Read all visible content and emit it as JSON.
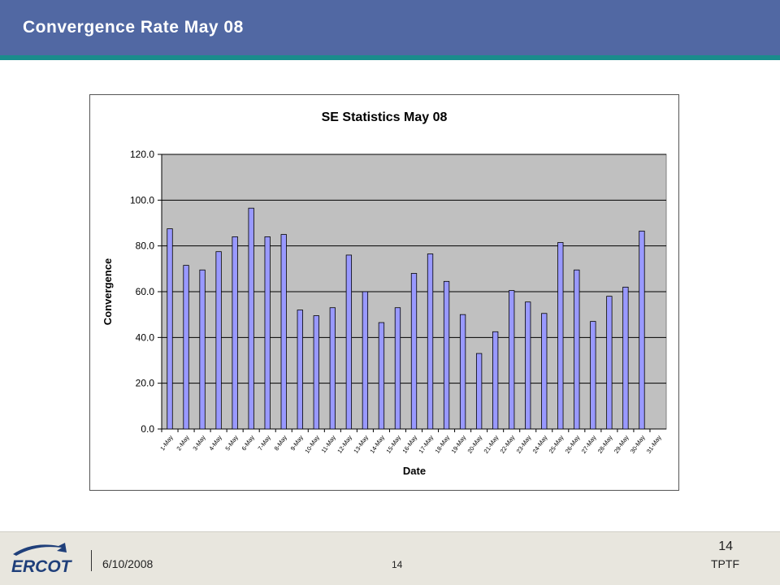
{
  "slide": {
    "title": "Convergence Rate May 08",
    "footer_date": "6/10/2008",
    "page_number": "14",
    "page_number_center": "14",
    "footer_org": "TPTF",
    "logo_text": "ERCOT"
  },
  "colors": {
    "header": "#5168a3",
    "accent_stripe": "#1a8c8c",
    "plot_bg": "#c0c0c0",
    "bar_fill": "#9999ff",
    "bar_stroke": "#000000",
    "logo_blue": "#1f3f7a"
  },
  "chart_data": {
    "type": "bar",
    "title": "SE Statistics May 08",
    "xlabel": "Date",
    "ylabel": "Convergence",
    "ylim": [
      0,
      120
    ],
    "yticks": [
      "0.0",
      "20.0",
      "40.0",
      "60.0",
      "80.0",
      "100.0",
      "120.0"
    ],
    "grid": true,
    "legend": "none",
    "categories": [
      "1-May",
      "2-May",
      "3-May",
      "4-May",
      "5-May",
      "6-May",
      "7-May",
      "8-May",
      "9-May",
      "10-May",
      "11-May",
      "12-May",
      "13-May",
      "14-May",
      "15-May",
      "16-May",
      "17-May",
      "18-May",
      "19-May",
      "20-May",
      "21-May",
      "22-May",
      "23-May",
      "24-May",
      "25-May",
      "26-May",
      "27-May",
      "28-May",
      "29-May",
      "30-May",
      "31-May"
    ],
    "values": [
      87.5,
      71.5,
      69.5,
      77.5,
      84.0,
      96.5,
      84.0,
      85.0,
      52.0,
      49.5,
      53.0,
      76.0,
      60.0,
      46.5,
      53.0,
      68.0,
      76.5,
      64.5,
      50.0,
      33.0,
      42.5,
      60.5,
      55.5,
      50.5,
      81.5,
      69.5,
      47.0,
      58.0,
      62.0,
      86.5,
      0
    ]
  }
}
